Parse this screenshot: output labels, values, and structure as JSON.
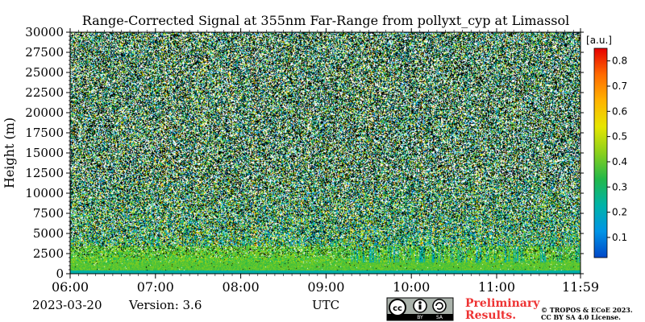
{
  "chart_data": {
    "type": "heatmap",
    "title": "Range-Corrected Signal at 355nm Far-Range from pollyxt_cyp at Limassol",
    "ylabel": "Height (m)",
    "xlabel": "UTC",
    "x_ticks": [
      "06:00",
      "07:00",
      "08:00",
      "09:00",
      "10:00",
      "11:00",
      "11:59"
    ],
    "x_tick_hours": [
      6,
      7,
      8,
      9,
      10,
      11,
      11.983
    ],
    "xlim_hours": [
      6,
      11.983
    ],
    "y_ticks": [
      "0",
      "2500",
      "5000",
      "7500",
      "10000",
      "12500",
      "15000",
      "17500",
      "20000",
      "22500",
      "25000",
      "27500",
      "30000"
    ],
    "y_tick_values": [
      0,
      2500,
      5000,
      7500,
      10000,
      12500,
      15000,
      17500,
      20000,
      22500,
      25000,
      27500,
      30000
    ],
    "ylim": [
      0,
      30000
    ],
    "colorbar": {
      "unit": "[a.u.]",
      "range": [
        0.02,
        0.85
      ],
      "ticks": [
        "0.1",
        "0.2",
        "0.3",
        "0.4",
        "0.5",
        "0.6",
        "0.7",
        "0.8"
      ],
      "tick_values": [
        0.1,
        0.2,
        0.3,
        0.4,
        0.5,
        0.6,
        0.7,
        0.8
      ],
      "colormap": [
        "#0047c8",
        "#0094e6",
        "#00b3a8",
        "#22b84a",
        "#8ad01c",
        "#e6e600",
        "#ffb300",
        "#ff6a00",
        "#e60000"
      ]
    }
  },
  "footer": {
    "date": "2023-03-20",
    "version": "Version: 3.6",
    "utc": "UTC",
    "preliminary_line1": "Preliminary",
    "preliminary_line2": "Results.",
    "copyright_line1": "© TROPOS & ECoE 2023.",
    "copyright_line2": "CC BY SA 4.0 License.",
    "license_badge": "cc-by-sa-badge",
    "license_by": "BY",
    "license_sa": "SA"
  }
}
